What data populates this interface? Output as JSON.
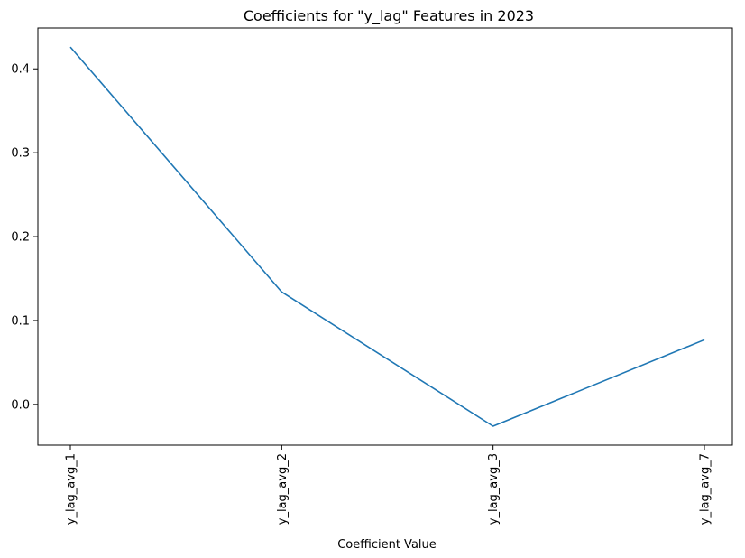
{
  "chart_data": {
    "type": "line",
    "title": "Coefficients for \"y_lag\" Features in 2023",
    "xlabel": "Coefficient Value",
    "ylabel": "",
    "categories": [
      "y_lag_avg_1",
      "y_lag_avg_2",
      "y_lag_avg_3",
      "y_lag_avg_7"
    ],
    "series": [
      {
        "values": [
          0.426,
          0.134,
          -0.026,
          0.077
        ],
        "color": "#1f77b4"
      }
    ],
    "ylim": [
      -0.0486,
      0.4487
    ],
    "yticks": [
      0.0,
      0.1,
      0.2,
      0.3,
      0.4
    ],
    "ytick_labels": [
      "0.0",
      "0.1",
      "0.2",
      "0.3",
      "0.4"
    ],
    "grid": false,
    "legend": "none"
  }
}
